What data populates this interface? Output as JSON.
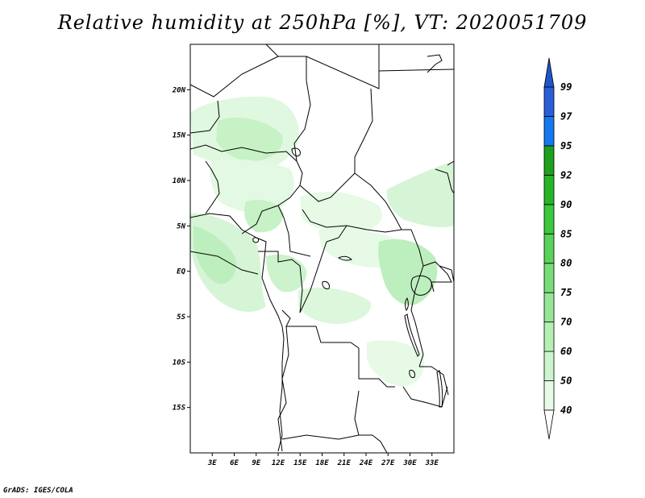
{
  "title": "Relative humidity at 250hPa [%], VT: 2020051709",
  "footer": "GrADS: IGES/COLA",
  "map": {
    "lon_range": [
      0,
      36
    ],
    "lat_range": [
      -20,
      25
    ],
    "x_ticks": [
      {
        "value": 3,
        "label": "3E"
      },
      {
        "value": 6,
        "label": "6E"
      },
      {
        "value": 9,
        "label": "9E"
      },
      {
        "value": 12,
        "label": "12E"
      },
      {
        "value": 15,
        "label": "15E"
      },
      {
        "value": 18,
        "label": "18E"
      },
      {
        "value": 21,
        "label": "21E"
      },
      {
        "value": 24,
        "label": "24E"
      },
      {
        "value": 27,
        "label": "27E"
      },
      {
        "value": 30,
        "label": "30E"
      },
      {
        "value": 33,
        "label": "33E"
      }
    ],
    "y_ticks": [
      {
        "value": 20,
        "label": "20N"
      },
      {
        "value": 15,
        "label": "15N"
      },
      {
        "value": 10,
        "label": "10N"
      },
      {
        "value": 5,
        "label": "5N"
      },
      {
        "value": 0,
        "label": "EQ"
      },
      {
        "value": -5,
        "label": "5S"
      },
      {
        "value": -10,
        "label": "10S"
      },
      {
        "value": -15,
        "label": "15S"
      }
    ]
  },
  "colorbar": {
    "levels": [
      "40",
      "50",
      "60",
      "70",
      "75",
      "80",
      "85",
      "90",
      "92",
      "95",
      "97",
      "99"
    ],
    "colors": [
      "#e6fae6",
      "#cdf5cd",
      "#b4f0b4",
      "#96e696",
      "#78dc78",
      "#5ad25a",
      "#3cc83c",
      "#28b428",
      "#1ea01e",
      "#1478f0",
      "#2a5ed8",
      "#1e4bb4"
    ],
    "under_color": "#ffffff",
    "over_color": "#1f55c8"
  },
  "chart_data": {
    "type": "heatmap",
    "title": "Relative humidity at 250hPa [%], VT: 2020051709",
    "xlabel": "",
    "ylabel": "",
    "x_range": [
      0,
      36
    ],
    "y_range": [
      -20,
      25
    ],
    "units": "%",
    "levels": [
      40,
      50,
      60,
      70,
      75,
      80,
      85,
      90,
      92,
      95,
      97,
      99
    ],
    "regions": [
      {
        "lon": [
          2,
          10
        ],
        "lat": [
          13,
          18
        ],
        "value": 55
      },
      {
        "lon": [
          10,
          15
        ],
        "lat": [
          10,
          14
        ],
        "value": 55
      },
      {
        "lon": [
          0,
          4
        ],
        "lat": [
          -2,
          8
        ],
        "value": 60
      },
      {
        "lon": [
          6,
          12
        ],
        "lat": [
          -3,
          2
        ],
        "value": 55
      },
      {
        "lon": [
          25,
          31
        ],
        "lat": [
          -3,
          4
        ],
        "value": 60
      },
      {
        "lon": [
          28,
          34
        ],
        "lat": [
          6,
          10
        ],
        "value": 50
      },
      {
        "lon": [
          16,
          22
        ],
        "lat": [
          5,
          7
        ],
        "value": 45
      }
    ]
  }
}
